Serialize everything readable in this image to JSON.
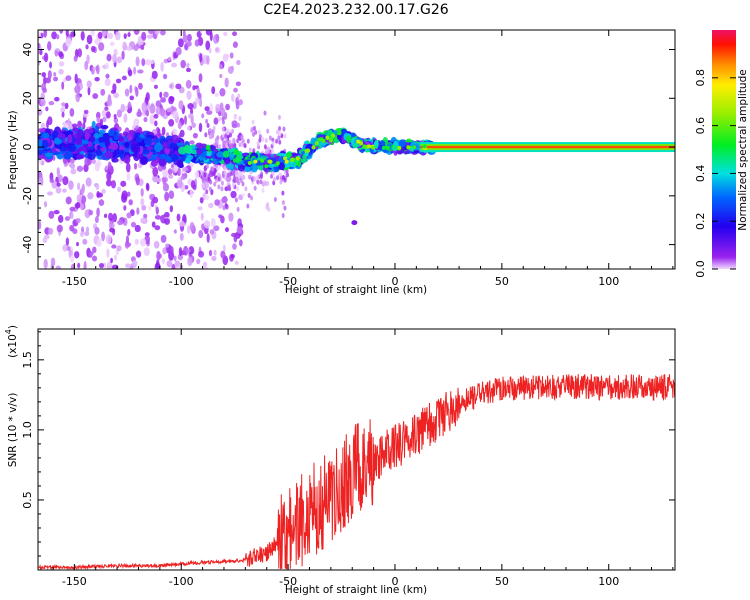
{
  "title": "C2E4.2023.232.00.17.G26",
  "chart_data": [
    {
      "type": "heatmap",
      "xlabel": "Height of straight line (km)",
      "ylabel": "Frequency (Hz)",
      "xlim": [
        -167,
        131
      ],
      "ylim": [
        -50,
        48
      ],
      "xticks": [
        -150,
        -100,
        -50,
        0,
        50,
        100
      ],
      "yticks": [
        -40,
        -20,
        0,
        20,
        40
      ],
      "colorbar": {
        "label": "Normalized spectral amplitude",
        "range": [
          0,
          1
        ],
        "ticks": [
          "0.0",
          "0.2",
          "0.4",
          "0.6",
          "0.8"
        ],
        "tick_values": [
          0.0,
          0.2,
          0.4,
          0.6,
          0.8
        ]
      },
      "ridge": [
        {
          "x": -165,
          "y": 1
        },
        {
          "x": -140,
          "y": 2
        },
        {
          "x": -120,
          "y": 0
        },
        {
          "x": -100,
          "y": -2
        },
        {
          "x": -80,
          "y": -4
        },
        {
          "x": -60,
          "y": -7
        },
        {
          "x": -45,
          "y": -5
        },
        {
          "x": -35,
          "y": 3
        },
        {
          "x": -25,
          "y": 5
        },
        {
          "x": -15,
          "y": 1
        },
        {
          "x": 0,
          "y": 0
        },
        {
          "x": 15,
          "y": 0
        },
        {
          "x": 131,
          "y": 0
        }
      ],
      "outlier": {
        "x": -19,
        "y": -31
      }
    },
    {
      "type": "line",
      "xlabel": "Height of straight line (km)",
      "ylabel": "SNR (10 * v/v)",
      "scale_label": "(x10",
      "scale_exp": "4",
      "scale_close": ")",
      "xlim": [
        -167,
        131
      ],
      "ylim": [
        0,
        1.72
      ],
      "xticks": [
        -150,
        -100,
        -50,
        0,
        50,
        100
      ],
      "yticks": [
        0.5,
        1.0,
        1.5
      ],
      "ytick_labels": [
        "0.5",
        "1.0",
        "1.5"
      ],
      "series": [
        {
          "color": "#ee2222",
          "x": [
            -167,
            -150,
            -130,
            -110,
            -95,
            -80,
            -70,
            -65,
            -60,
            -55,
            -50,
            -45,
            -40,
            -35,
            -30,
            -25,
            -20,
            -15,
            -10,
            -5,
            0,
            5,
            10,
            15,
            20,
            25,
            30,
            35,
            40,
            50,
            60,
            70,
            80,
            90,
            100,
            110,
            120,
            131
          ],
          "y": [
            0.02,
            0.02,
            0.03,
            0.03,
            0.05,
            0.06,
            0.07,
            0.1,
            0.12,
            0.2,
            0.28,
            0.35,
            0.42,
            0.48,
            0.55,
            0.62,
            0.68,
            0.72,
            0.78,
            0.83,
            0.88,
            0.92,
            0.97,
            1.02,
            1.08,
            1.14,
            1.18,
            1.22,
            1.26,
            1.29,
            1.3,
            1.3,
            1.31,
            1.31,
            1.3,
            1.31,
            1.3,
            1.31
          ]
        }
      ]
    }
  ]
}
